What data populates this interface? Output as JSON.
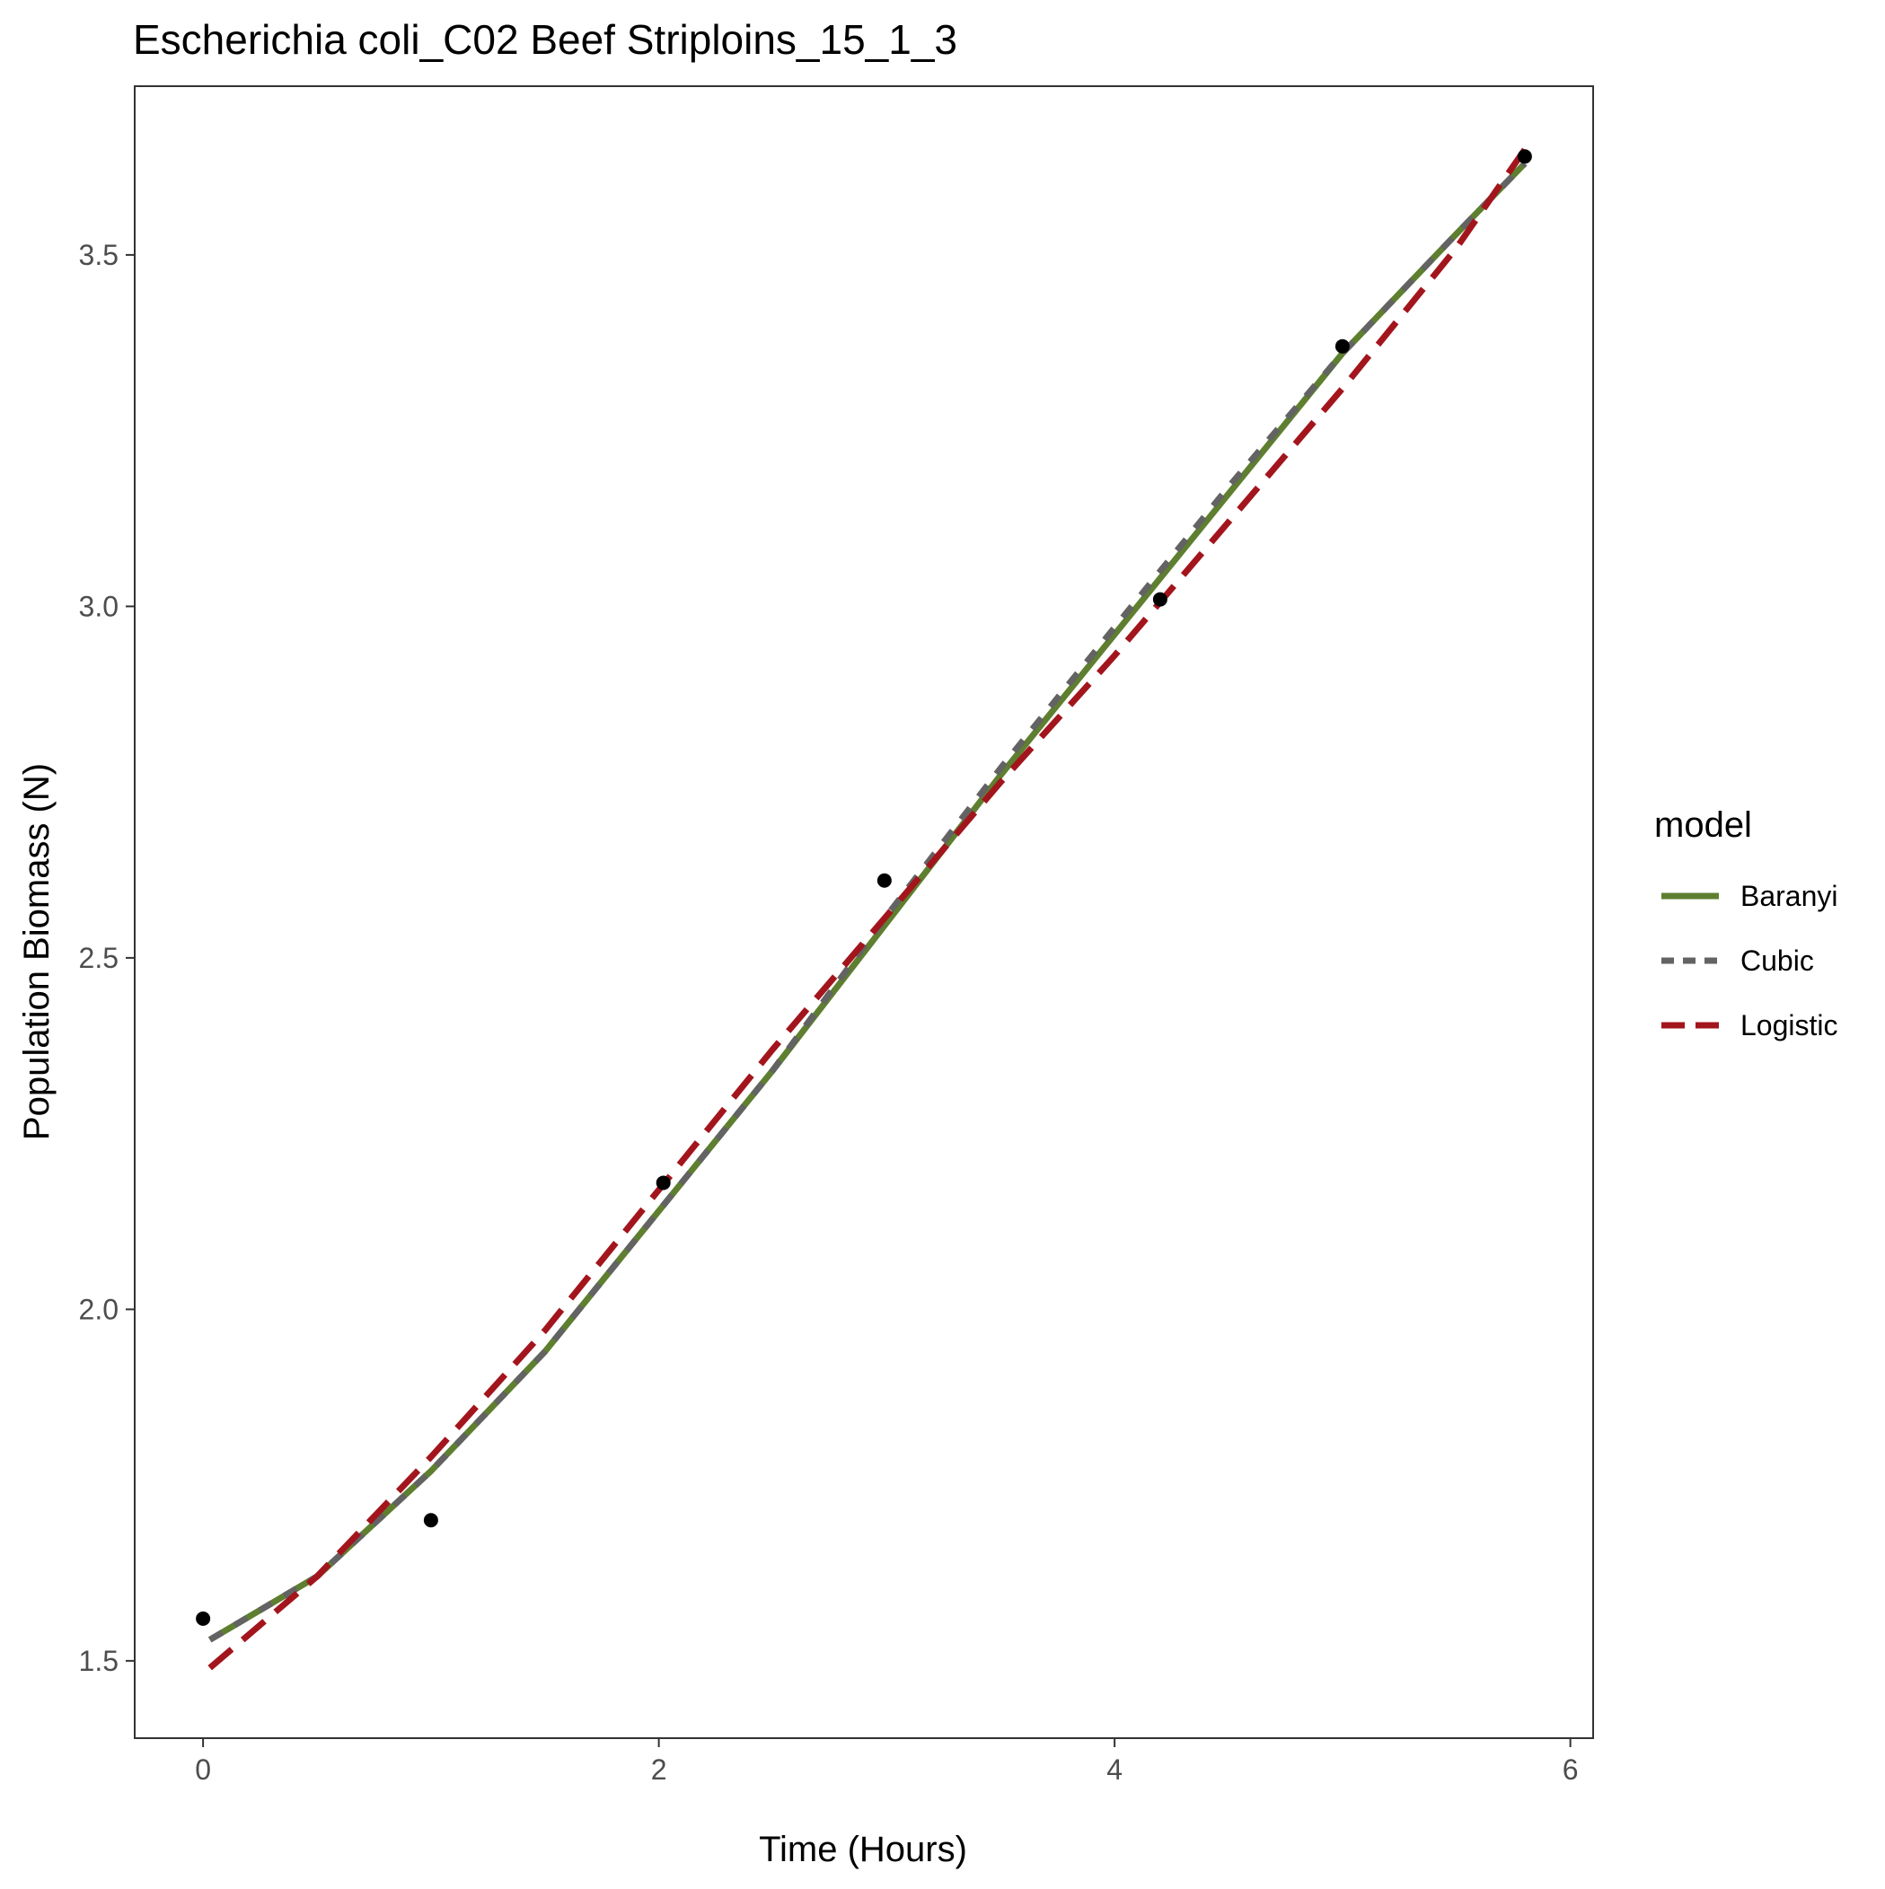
{
  "chart_data": {
    "type": "line",
    "title": "Escherichia coli_C02 Beef Striploins_15_1_3",
    "xlabel": "Time (Hours)",
    "ylabel": "Population Biomass (N)",
    "xlim": [
      -0.3,
      6.1
    ],
    "ylim": [
      1.39,
      3.74
    ],
    "x_ticks": [
      0,
      2,
      4,
      6
    ],
    "y_ticks": [
      1.5,
      2.0,
      2.5,
      3.0,
      3.5
    ],
    "x_tick_labels": [
      "0",
      "2",
      "4",
      "6"
    ],
    "y_tick_labels": [
      "1.5",
      "2.0",
      "2.5",
      "3.0",
      "3.5"
    ],
    "grid": false,
    "legend": {
      "title": "model",
      "position": "right",
      "entries": [
        "Baranyi",
        "Cubic",
        "Logistic"
      ]
    },
    "points": {
      "x": [
        0,
        1.0,
        2.02,
        2.99,
        4.2,
        5.0,
        5.8
      ],
      "y": [
        1.56,
        1.7,
        2.18,
        2.61,
        3.01,
        3.37,
        3.64
      ]
    },
    "series": [
      {
        "name": "Baranyi",
        "color": "#5e7f2f",
        "style": "solid",
        "x": [
          0.03,
          0.5,
          1.0,
          1.5,
          2.0,
          2.5,
          3.0,
          3.5,
          4.0,
          4.5,
          5.0,
          5.5,
          5.8
        ],
        "y": [
          1.53,
          1.62,
          1.77,
          1.94,
          2.14,
          2.34,
          2.55,
          2.76,
          2.96,
          3.16,
          3.36,
          3.53,
          3.63
        ]
      },
      {
        "name": "Cubic",
        "color": "#636363",
        "style": "dashed",
        "x": [
          0.03,
          0.5,
          1.0,
          1.5,
          2.0,
          2.5,
          3.0,
          3.5,
          4.0,
          4.5,
          5.0,
          5.5,
          5.8
        ],
        "y": [
          1.53,
          1.62,
          1.77,
          1.94,
          2.14,
          2.34,
          2.56,
          2.77,
          2.97,
          3.17,
          3.36,
          3.53,
          3.63
        ]
      },
      {
        "name": "Logistic",
        "color": "#a3151d",
        "style": "longdash",
        "x": [
          0.03,
          0.5,
          1.0,
          1.5,
          2.0,
          2.5,
          3.0,
          3.5,
          4.0,
          4.5,
          5.0,
          5.5,
          5.8
        ],
        "y": [
          1.49,
          1.62,
          1.79,
          1.97,
          2.17,
          2.37,
          2.56,
          2.75,
          2.93,
          3.12,
          3.31,
          3.51,
          3.65
        ]
      }
    ]
  }
}
